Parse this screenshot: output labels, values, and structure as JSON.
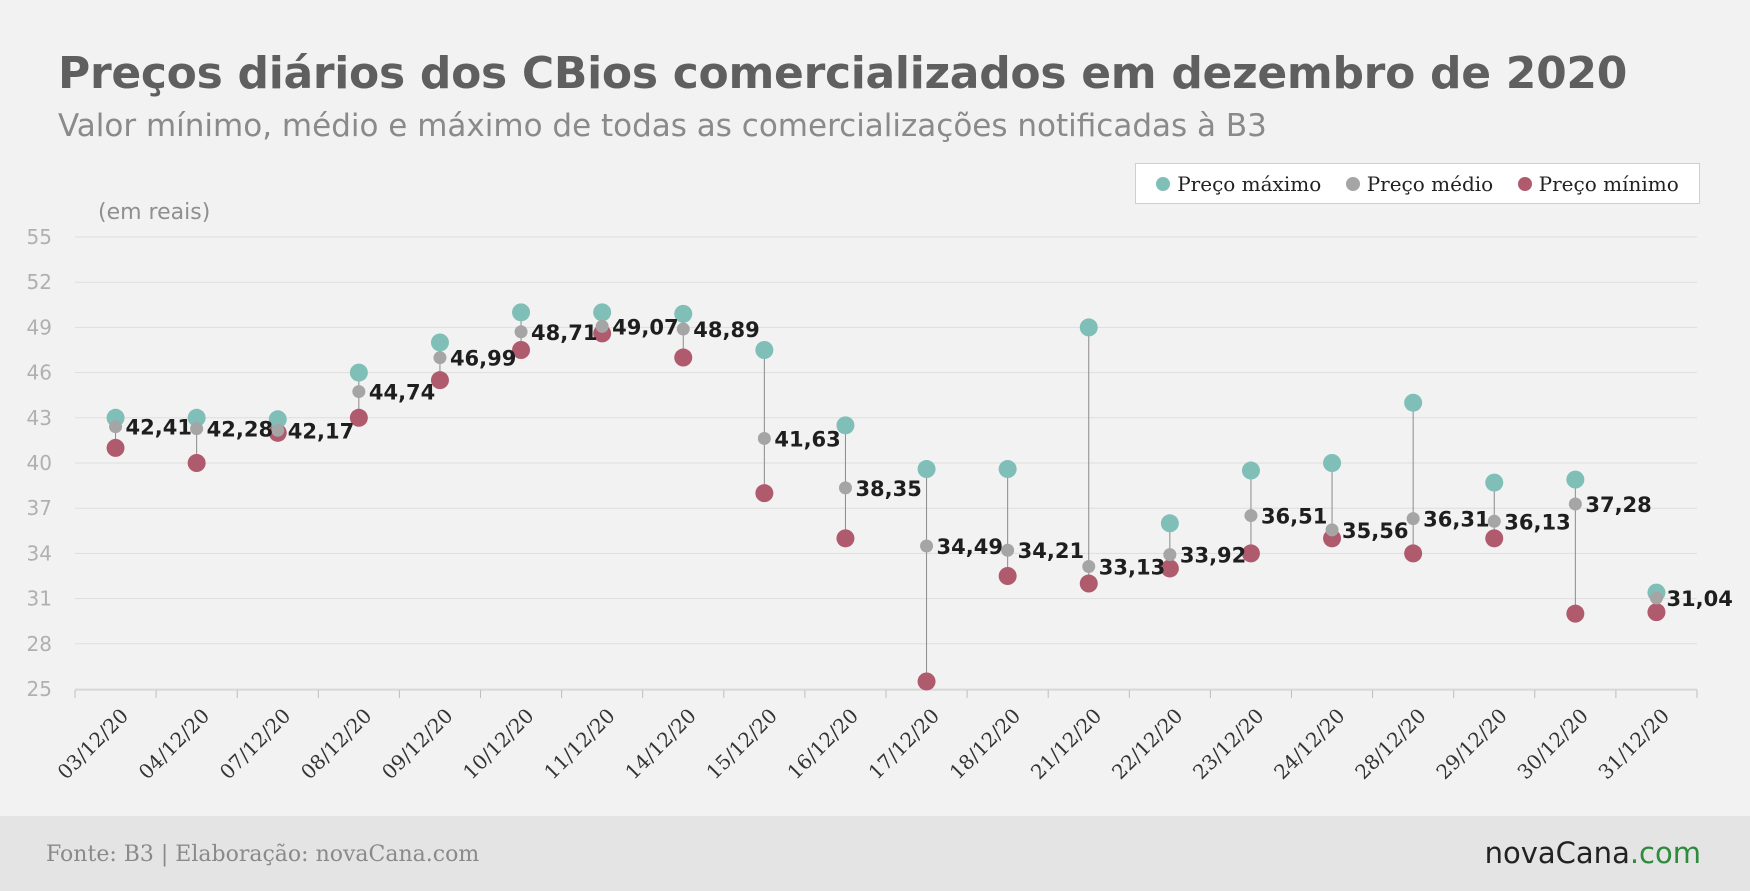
{
  "header": {
    "title": "Preços diários dos CBios comercializados em dezembro de 2020",
    "subtitle": "Valor mínimo, médio e máximo de todas as comercializações notificadas à B3"
  },
  "legend": {
    "items": [
      {
        "label": "Preço máximo",
        "color": "#7fbfb8"
      },
      {
        "label": "Preço médio",
        "color": "#a5a5a5"
      },
      {
        "label": "Preço mínimo",
        "color": "#b05a6e"
      }
    ]
  },
  "footer": {
    "source": "Fonte: B3 | Elaboração: novaCana.com",
    "brand_main": "novaCana",
    "brand_suffix": ".com"
  },
  "chart_data": {
    "type": "scatter",
    "ylabel": "(em reais)",
    "ylim": [
      25,
      55
    ],
    "yticks": [
      25,
      28,
      31,
      34,
      37,
      40,
      43,
      46,
      49,
      52,
      55
    ],
    "grid": true,
    "legend_position": "top-right",
    "categories": [
      "03/12/20",
      "04/12/20",
      "07/12/20",
      "08/12/20",
      "09/12/20",
      "10/12/20",
      "11/12/20",
      "14/12/20",
      "15/12/20",
      "16/12/20",
      "17/12/20",
      "18/12/20",
      "21/12/20",
      "22/12/20",
      "23/12/20",
      "24/12/20",
      "28/12/20",
      "29/12/20",
      "30/12/20",
      "31/12/20"
    ],
    "series": [
      {
        "name": "Preço máximo",
        "color": "#7fbfb8",
        "values": [
          43.0,
          43.0,
          42.9,
          46.0,
          48.0,
          50.0,
          50.0,
          49.9,
          47.5,
          42.5,
          39.6,
          39.6,
          49.0,
          36.0,
          39.5,
          40.0,
          44.0,
          38.7,
          38.9,
          31.4
        ]
      },
      {
        "name": "Preço médio",
        "color": "#a5a5a5",
        "values": [
          42.41,
          42.28,
          42.17,
          44.74,
          46.99,
          48.71,
          49.07,
          48.89,
          41.63,
          38.35,
          34.49,
          34.21,
          33.13,
          33.92,
          36.51,
          35.56,
          36.31,
          36.13,
          37.28,
          31.04
        ]
      },
      {
        "name": "Preço mínimo",
        "color": "#b05a6e",
        "values": [
          41.0,
          40.0,
          42.0,
          43.0,
          45.5,
          47.5,
          48.6,
          47.0,
          38.0,
          35.0,
          25.5,
          32.5,
          32.0,
          33.0,
          34.0,
          35.0,
          34.0,
          35.0,
          30.0,
          30.1
        ]
      }
    ],
    "data_labels": [
      "42,41",
      "42,28",
      "42,17",
      "44,74",
      "46,99",
      "48,71",
      "49,07",
      "48,89",
      "41,63",
      "38,35",
      "34,49",
      "34,21",
      "33,13",
      "33,92",
      "36,51",
      "35,56",
      "36,31",
      "36,13",
      "37,28",
      "31,04"
    ]
  }
}
